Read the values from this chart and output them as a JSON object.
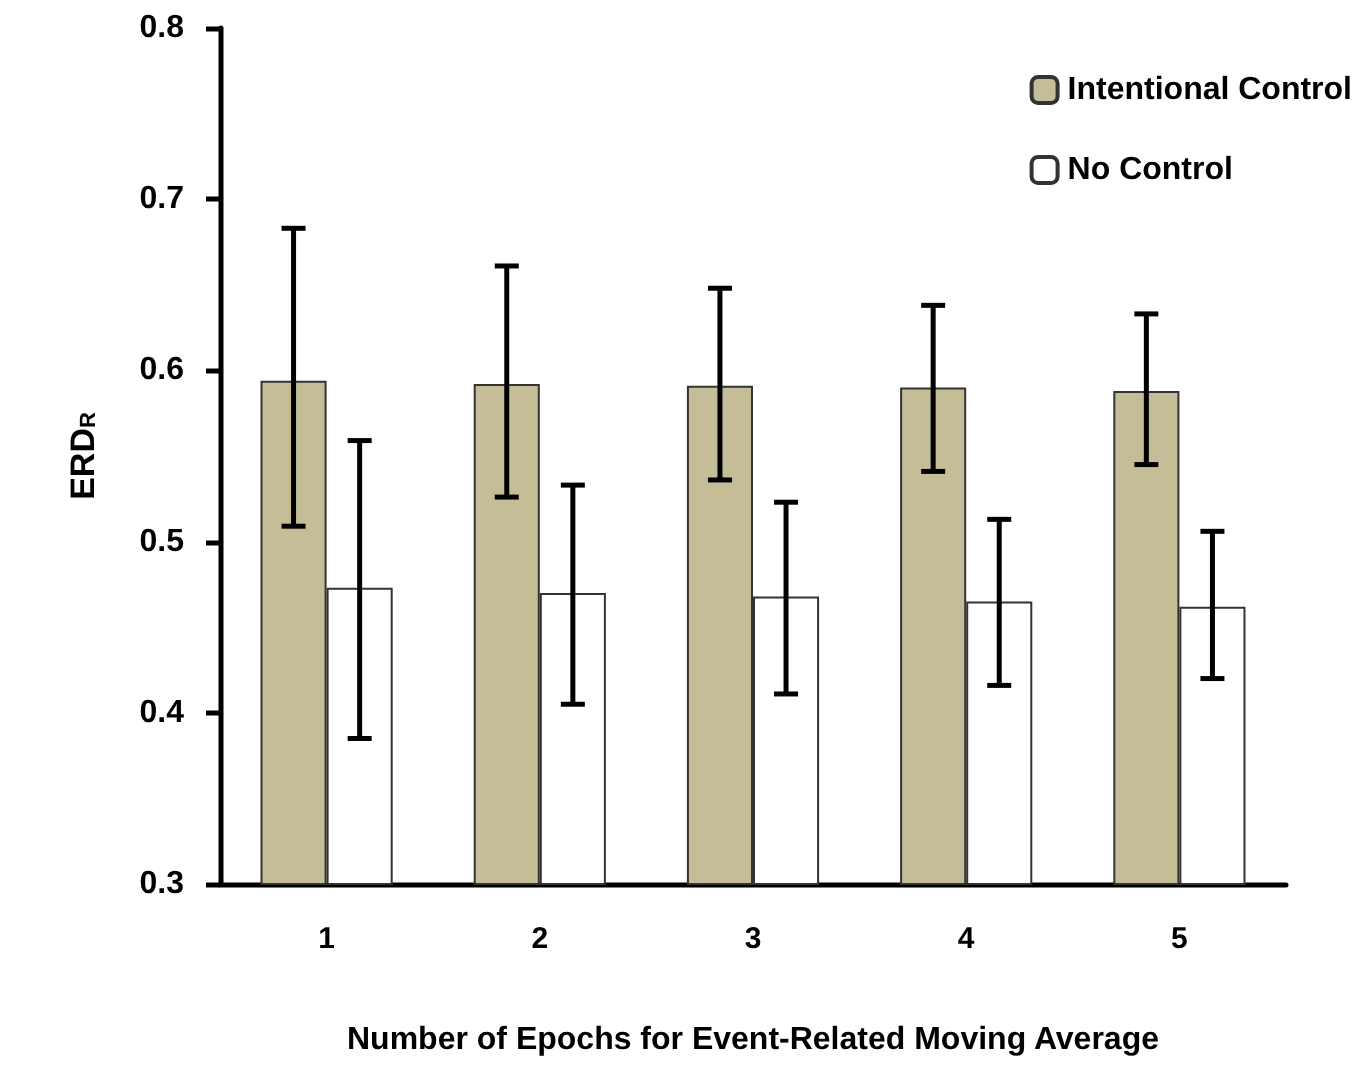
{
  "chart_data": {
    "type": "bar",
    "xlabel": "Number of Epochs for Event-Related Moving Average",
    "ylabel": "ERD$_{R}$",
    "categories": [
      "1",
      "2",
      "3",
      "4",
      "5"
    ],
    "series": [
      {
        "name": "Intentional Control",
        "color": "#c4bd97",
        "values": [
          0.594,
          0.592,
          0.591,
          0.59,
          0.588
        ],
        "errors": [
          [
            0.509,
            0.683
          ],
          [
            0.526,
            0.661
          ],
          [
            0.536,
            0.648
          ],
          [
            0.541,
            0.638
          ],
          [
            0.545,
            0.633
          ]
        ]
      },
      {
        "name": "No Control",
        "color": "#ffffff",
        "values": [
          0.473,
          0.47,
          0.468,
          0.465,
          0.462
        ],
        "errors": [
          [
            0.385,
            0.559
          ],
          [
            0.405,
            0.533
          ],
          [
            0.411,
            0.523
          ],
          [
            0.416,
            0.513
          ],
          [
            0.42,
            0.506
          ]
        ]
      }
    ],
    "ylim": [
      0.3,
      0.8
    ],
    "yticks": [
      0.3,
      0.4,
      0.5,
      0.6,
      0.7,
      0.8
    ],
    "grid": false,
    "legend": "top right"
  }
}
